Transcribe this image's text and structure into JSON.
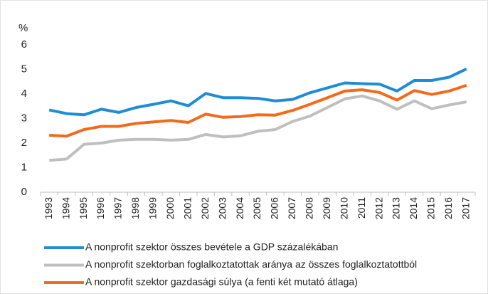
{
  "chart_data": {
    "type": "line",
    "y_label": "%",
    "categories": [
      "1993",
      "1994",
      "1995",
      "1996",
      "1997",
      "1998",
      "1999",
      "2000",
      "2001",
      "2002",
      "2003",
      "2004",
      "2005",
      "2006",
      "2007",
      "2008",
      "2009",
      "2010",
      "2011",
      "2012",
      "2013",
      "2014",
      "2015",
      "2016",
      "2017"
    ],
    "series": [
      {
        "name": "A nonprofit szektor összes bevétele a GDP százalékában",
        "color": "#1f8dd6",
        "values": [
          3.35,
          3.2,
          3.15,
          3.38,
          3.25,
          3.45,
          3.58,
          3.72,
          3.52,
          4.02,
          3.85,
          3.85,
          3.82,
          3.72,
          3.78,
          4.05,
          4.25,
          4.45,
          4.42,
          4.4,
          4.12,
          4.55,
          4.55,
          4.68,
          5.02
        ]
      },
      {
        "name": "A nonprofit szektorban foglalkoztatottak aránya az összes foglalkoztatottból",
        "color": "#bfbfbf",
        "values": [
          1.3,
          1.35,
          1.95,
          2.0,
          2.12,
          2.15,
          2.15,
          2.12,
          2.15,
          2.35,
          2.25,
          2.3,
          2.48,
          2.55,
          2.88,
          3.1,
          3.45,
          3.8,
          3.92,
          3.72,
          3.38,
          3.72,
          3.4,
          3.55,
          3.68
        ]
      },
      {
        "name": "A nonprofit szektor gazdasági súlya (a fenti két mutató átlaga)",
        "color": "#f26a1b",
        "values": [
          2.32,
          2.28,
          2.55,
          2.68,
          2.68,
          2.8,
          2.86,
          2.92,
          2.84,
          3.18,
          3.05,
          3.08,
          3.15,
          3.14,
          3.33,
          3.58,
          3.85,
          4.12,
          4.17,
          4.06,
          3.75,
          4.14,
          3.98,
          4.12,
          4.35
        ]
      }
    ],
    "ylim": [
      0,
      6
    ],
    "yticks": [
      0,
      1,
      2,
      3,
      4,
      5,
      6
    ]
  }
}
